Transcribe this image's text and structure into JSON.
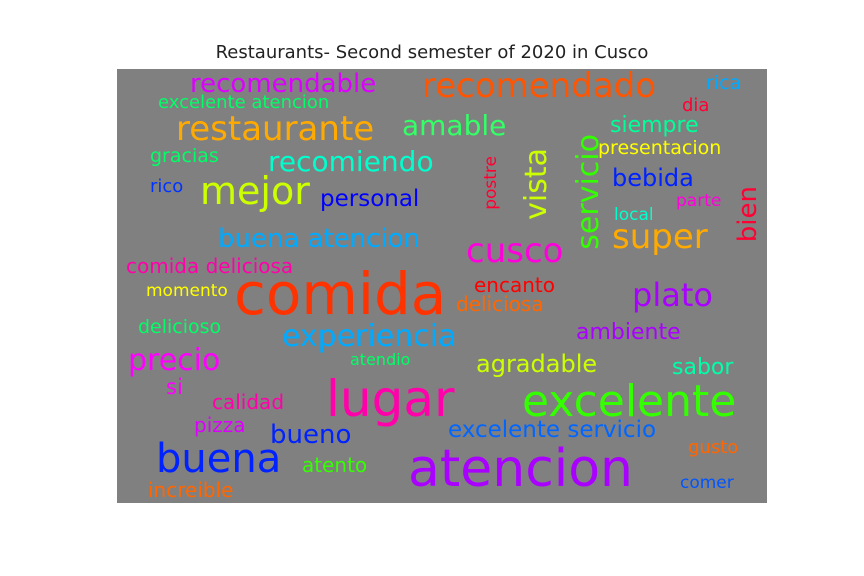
{
  "chart_data": {
    "type": "wordcloud",
    "title": "Restaurants- Second semester of 2020 in Cusco",
    "background_color": "#808080",
    "words": [
      {
        "text": "comida",
        "weight": 100,
        "color": "#ff3300"
      },
      {
        "text": "atencion",
        "weight": 88,
        "color": "#aa00ff"
      },
      {
        "text": "lugar",
        "weight": 84,
        "color": "#ff00aa"
      },
      {
        "text": "excelente",
        "weight": 76,
        "color": "#33ff00"
      },
      {
        "text": "buena",
        "weight": 72,
        "color": "#0022ff"
      },
      {
        "text": "mejor",
        "weight": 64,
        "color": "#ccff00"
      },
      {
        "text": "restaurante",
        "weight": 56,
        "color": "#ffaa00"
      },
      {
        "text": "recomendado",
        "weight": 56,
        "color": "#ff5500"
      },
      {
        "text": "cusco",
        "weight": 56,
        "color": "#ff00dd"
      },
      {
        "text": "super",
        "weight": 56,
        "color": "#ffaa00"
      },
      {
        "text": "plato",
        "weight": 54,
        "color": "#aa00ff"
      },
      {
        "text": "experiencia",
        "weight": 50,
        "color": "#00aaff"
      },
      {
        "text": "precio",
        "weight": 50,
        "color": "#ff00ff"
      },
      {
        "text": "vista",
        "weight": 50,
        "color": "#ccff00"
      },
      {
        "text": "servicio",
        "weight": 50,
        "color": "#33ff00"
      },
      {
        "text": "recomiendo",
        "weight": 48,
        "color": "#00ffcc"
      },
      {
        "text": "amable",
        "weight": 48,
        "color": "#33ff66"
      },
      {
        "text": "recomendable",
        "weight": 46,
        "color": "#dd00ff"
      },
      {
        "text": "buena atencion",
        "weight": 44,
        "color": "#00aaff"
      },
      {
        "text": "bueno",
        "weight": 44,
        "color": "#0022ff"
      },
      {
        "text": "excelente servicio",
        "weight": 40,
        "color": "#0066ff"
      },
      {
        "text": "agradable",
        "weight": 40,
        "color": "#ccff00"
      },
      {
        "text": "bebida",
        "weight": 40,
        "color": "#0022ff"
      },
      {
        "text": "bien",
        "weight": 40,
        "color": "#ff0033"
      },
      {
        "text": "ambiente",
        "weight": 38,
        "color": "#aa00ff"
      },
      {
        "text": "sabor",
        "weight": 38,
        "color": "#00ffaa"
      },
      {
        "text": "personal",
        "weight": 38,
        "color": "#0000ff"
      },
      {
        "text": "siempre",
        "weight": 36,
        "color": "#00ff99"
      },
      {
        "text": "comida deliciosa",
        "weight": 34,
        "color": "#ff00aa"
      },
      {
        "text": "encanto",
        "weight": 34,
        "color": "#ff0000"
      },
      {
        "text": "deliciosa",
        "weight": 34,
        "color": "#ff6600"
      },
      {
        "text": "calidad",
        "weight": 34,
        "color": "#ff00aa"
      },
      {
        "text": "pizza",
        "weight": 34,
        "color": "#dd00ff"
      },
      {
        "text": "atento",
        "weight": 34,
        "color": "#33ff00"
      },
      {
        "text": "increible",
        "weight": 34,
        "color": "#ff6600"
      },
      {
        "text": "excelente atencion",
        "weight": 32,
        "color": "#00ff66"
      },
      {
        "text": "delicioso",
        "weight": 32,
        "color": "#00ff66"
      },
      {
        "text": "si",
        "weight": 32,
        "color": "#ff00ff"
      },
      {
        "text": "gracias",
        "weight": 30,
        "color": "#00ff66"
      },
      {
        "text": "presentacion",
        "weight": 30,
        "color": "#ffff00"
      },
      {
        "text": "gusto",
        "weight": 30,
        "color": "#ff6600"
      },
      {
        "text": "rica",
        "weight": 30,
        "color": "#00aaff"
      },
      {
        "text": "rico",
        "weight": 28,
        "color": "#0033ff"
      },
      {
        "text": "momento",
        "weight": 28,
        "color": "#ffff00"
      },
      {
        "text": "dia",
        "weight": 28,
        "color": "#ff0033"
      },
      {
        "text": "parte",
        "weight": 28,
        "color": "#ff00dd"
      },
      {
        "text": "local",
        "weight": 28,
        "color": "#00ffcc"
      },
      {
        "text": "comer",
        "weight": 28,
        "color": "#0055ff"
      },
      {
        "text": "postre",
        "weight": 26,
        "color": "#ff0033"
      },
      {
        "text": "atendio",
        "weight": 26,
        "color": "#00ff66"
      }
    ]
  }
}
